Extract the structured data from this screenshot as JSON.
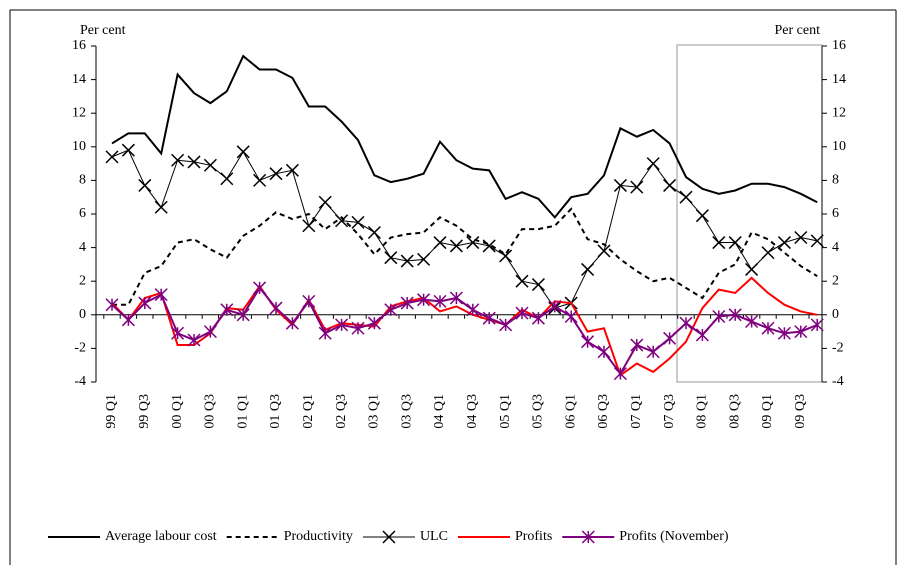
{
  "chart_data": {
    "type": "line",
    "y_label": "Per cent",
    "y2_label": "Per cent",
    "categories": [
      "99 Q1",
      null,
      "99 Q3",
      null,
      "00 Q1",
      null,
      "00 Q3",
      null,
      "01 Q1",
      null,
      "01 Q3",
      null,
      "02 Q1",
      null,
      "02 Q3",
      null,
      "03 Q1",
      null,
      "03 Q3",
      null,
      "04 Q1",
      null,
      "04 Q3",
      null,
      "05 Q1",
      null,
      "05 Q3",
      null,
      "06 Q1",
      null,
      "06 Q3",
      null,
      "07 Q1",
      null,
      "07 Q3",
      null,
      "08 Q1",
      null,
      "08 Q3",
      null,
      "09 Q1",
      null,
      "09 Q3",
      null
    ],
    "ylim": [
      -4,
      16
    ],
    "yticks": [
      -4,
      -2,
      0,
      2,
      4,
      6,
      8,
      10,
      12,
      14,
      16
    ],
    "y2lim": [
      -4,
      16
    ],
    "y2ticks": [
      -4,
      -2,
      0,
      2,
      4,
      6,
      8,
      10,
      12,
      14,
      16
    ],
    "legend": "bottom",
    "series": [
      {
        "name": "Average labour cost",
        "color": "#000000",
        "style": "solid",
        "marker": "none",
        "width": 2,
        "values": [
          10.2,
          10.8,
          10.8,
          9.6,
          14.3,
          13.2,
          12.6,
          13.3,
          15.4,
          14.6,
          14.6,
          14.1,
          12.4,
          12.4,
          11.5,
          10.4,
          8.3,
          7.9,
          8.1,
          8.4,
          10.3,
          9.2,
          8.7,
          8.6,
          6.9,
          7.3,
          6.9,
          5.8,
          7.0,
          7.2,
          8.3,
          11.1,
          10.6,
          11.0,
          10.2,
          8.2,
          7.5,
          7.2,
          7.4,
          7.8,
          7.8,
          7.6,
          7.2,
          6.7
        ]
      },
      {
        "name": "Productivity",
        "color": "#000000",
        "style": "dashed",
        "marker": "none",
        "width": 2,
        "values": [
          0.6,
          0.6,
          2.5,
          2.9,
          4.3,
          4.5,
          3.9,
          3.4,
          4.7,
          5.3,
          6.1,
          5.7,
          6.0,
          5.1,
          5.8,
          4.8,
          3.6,
          4.6,
          4.8,
          4.9,
          5.8,
          5.3,
          4.5,
          4.2,
          3.6,
          5.1,
          5.1,
          5.3,
          6.3,
          4.5,
          4.2,
          3.3,
          2.6,
          2.0,
          2.2,
          1.6,
          1.0,
          2.5,
          3.0,
          4.9,
          4.5,
          3.7,
          2.9,
          2.3
        ]
      },
      {
        "name": "ULC",
        "color": "#000000",
        "style": "solid",
        "marker": "x",
        "width": 1,
        "values": [
          9.4,
          9.8,
          7.7,
          6.4,
          9.2,
          9.1,
          8.9,
          8.1,
          9.7,
          8.0,
          8.4,
          8.6,
          5.3,
          6.7,
          5.6,
          5.5,
          4.9,
          3.4,
          3.2,
          3.3,
          4.3,
          4.1,
          4.3,
          4.1,
          3.5,
          2.0,
          1.8,
          0.4,
          0.7,
          2.7,
          3.8,
          7.7,
          7.6,
          9.0,
          7.7,
          7.0,
          5.9,
          4.3,
          4.3,
          2.7,
          3.7,
          4.3,
          4.6,
          4.4
        ]
      },
      {
        "name": "Profits",
        "color": "#ff0000",
        "style": "solid",
        "marker": "none",
        "width": 2,
        "values": [
          0.7,
          -0.3,
          1.0,
          1.3,
          -1.8,
          -1.8,
          -1.1,
          0.4,
          0.3,
          1.7,
          0.3,
          -0.6,
          0.9,
          -0.9,
          -0.5,
          -0.6,
          -0.7,
          0.5,
          0.8,
          1.0,
          0.2,
          0.5,
          0.0,
          -0.3,
          -0.6,
          0.3,
          -0.2,
          0.8,
          0.7,
          -1.0,
          -0.8,
          -3.6,
          -2.9,
          -3.4,
          -2.6,
          -1.6,
          0.4,
          1.5,
          1.3,
          2.2,
          1.3,
          0.6,
          0.2,
          0.0
        ]
      },
      {
        "name": "Profits (November)",
        "color": "#7f007f",
        "style": "solid",
        "marker": "asterisk",
        "width": 2,
        "values": [
          0.6,
          -0.3,
          0.7,
          1.2,
          -1.1,
          -1.5,
          -1.0,
          0.3,
          0.0,
          1.6,
          0.4,
          -0.5,
          0.8,
          -1.1,
          -0.6,
          -0.8,
          -0.5,
          0.3,
          0.7,
          0.9,
          0.8,
          1.0,
          0.3,
          -0.2,
          -0.6,
          0.1,
          -0.2,
          0.5,
          -0.1,
          -1.6,
          -2.2,
          -3.5,
          -1.8,
          -2.2,
          -1.4,
          -0.5,
          -1.2,
          -0.1,
          0.0,
          -0.4,
          -0.8,
          -1.1,
          -1.0,
          -0.6
        ]
      }
    ]
  }
}
